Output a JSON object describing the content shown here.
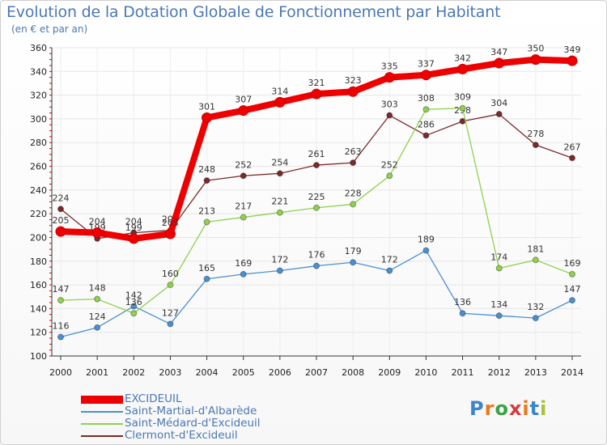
{
  "header": {
    "title": "Evolution de la Dotation Globale de Fonctionnement par Habitant",
    "subtitle": "(en € et par an)"
  },
  "logo": {
    "text": "Proxiti",
    "colors": [
      "#3a86c8",
      "#e8791c",
      "#3aa346",
      "#d23c3c",
      "#e8791c",
      "#3a86c8",
      "#a5c23a"
    ]
  },
  "chart_data": {
    "type": "line",
    "title": "Evolution de la Dotation Globale de Fonctionnement par Habitant",
    "subtitle": "(en € et par an)",
    "xlabel": "",
    "ylabel": "",
    "ylim": [
      100,
      360
    ],
    "yticks": [
      100,
      120,
      140,
      160,
      180,
      200,
      220,
      240,
      260,
      280,
      300,
      320,
      340,
      360
    ],
    "categories": [
      "2000",
      "2001",
      "2002",
      "2003",
      "2004",
      "2005",
      "2006",
      "2007",
      "2008",
      "2009",
      "2010",
      "2011",
      "2012",
      "2013",
      "2014"
    ],
    "legend_position": "bottom-left",
    "series": [
      {
        "name": "Clermont-d'Excideuil",
        "color": "#7a2a2a",
        "values": [
          224,
          199,
          204,
          206,
          248,
          252,
          254,
          261,
          263,
          303,
          286,
          298,
          304,
          278,
          267
        ]
      },
      {
        "name": "Saint-Martial-d'Albarède",
        "color": "#4a90d0",
        "values": [
          116,
          124,
          142,
          127,
          165,
          169,
          172,
          176,
          179,
          172,
          189,
          136,
          134,
          132,
          147
        ]
      },
      {
        "name": "Saint-Médard-d'Excideuil",
        "color": "#8fd14f",
        "values": [
          147,
          148,
          136,
          160,
          213,
          217,
          221,
          225,
          228,
          252,
          308,
          309,
          174,
          181,
          169
        ]
      },
      {
        "name": "EXCIDEUIL",
        "color": "#ee0000",
        "values": [
          205,
          204,
          199,
          203,
          301,
          307,
          314,
          321,
          323,
          335,
          337,
          342,
          347,
          350,
          349
        ]
      }
    ],
    "legend_order": [
      "EXCIDEUIL",
      "Saint-Martial-d'Albarède",
      "Saint-Médard-d'Excideuil",
      "Clermont-d'Excideuil"
    ]
  }
}
